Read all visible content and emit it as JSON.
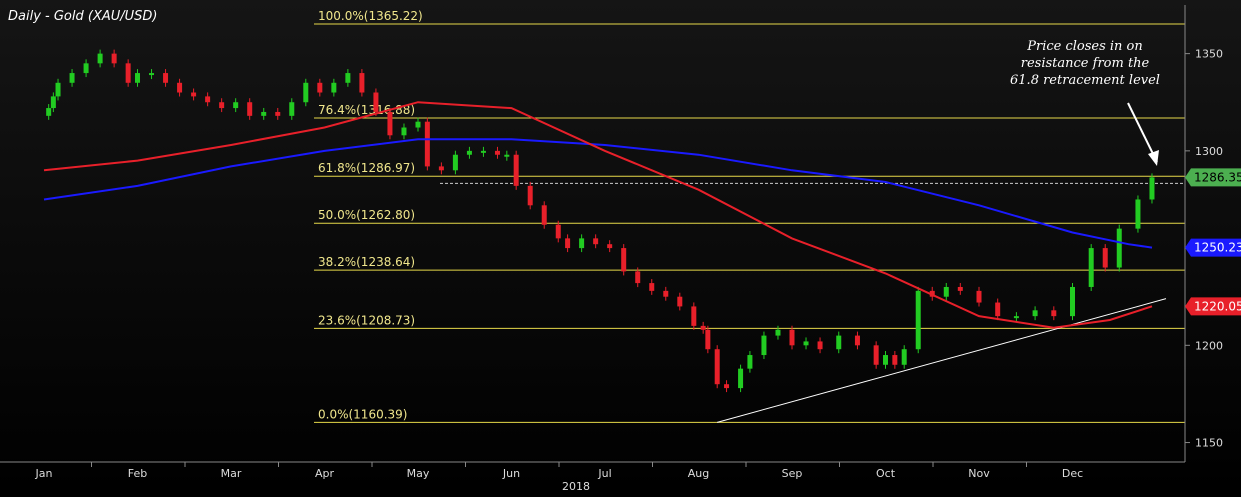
{
  "chart_data": {
    "type": "candlestick",
    "title": "Daily - Gold (XAU/USD)",
    "year_label": "2018",
    "months": [
      "Jan",
      "Feb",
      "Mar",
      "Apr",
      "May",
      "Jun",
      "Jul",
      "Aug",
      "Sep",
      "Oct",
      "Nov",
      "Dec"
    ],
    "ylim": [
      1140,
      1375
    ],
    "y_ticks": [
      1150,
      1200,
      1250,
      1300,
      1350
    ],
    "fib_levels": [
      {
        "label": "100.0%(1365.22)",
        "value": 1365.22
      },
      {
        "label": "76.4%(1316.88)",
        "value": 1316.88
      },
      {
        "label": "61.8%(1286.97)",
        "value": 1286.97
      },
      {
        "label": "50.0%(1262.80)",
        "value": 1262.8
      },
      {
        "label": "38.2%(1238.64)",
        "value": 1238.64
      },
      {
        "label": "23.6%(1208.73)",
        "value": 1208.73
      },
      {
        "label": "0.0%(1160.39)",
        "value": 1160.39
      }
    ],
    "price_tags": [
      {
        "label": "1286.35",
        "value": 1286.35,
        "color": "#4caf50"
      },
      {
        "label": "1250.23",
        "value": 1250.23,
        "color": "#1a1aff"
      },
      {
        "label": "1220.05",
        "value": 1220.05,
        "color": "#e8202a"
      }
    ],
    "series": [
      {
        "name": "close",
        "color": "#22cc22",
        "down_color": "#e8202a",
        "points": [
          [
            0,
            1318
          ],
          [
            0.05,
            1322
          ],
          [
            0.1,
            1328
          ],
          [
            0.15,
            1335
          ],
          [
            0.3,
            1340
          ],
          [
            0.45,
            1345
          ],
          [
            0.6,
            1350
          ],
          [
            0.75,
            1345
          ],
          [
            0.9,
            1335
          ],
          [
            1.0,
            1340
          ],
          [
            1.15,
            1340
          ],
          [
            1.3,
            1335
          ],
          [
            1.45,
            1330
          ],
          [
            1.6,
            1328
          ],
          [
            1.75,
            1325
          ],
          [
            1.9,
            1322
          ],
          [
            2.05,
            1325
          ],
          [
            2.2,
            1318
          ],
          [
            2.35,
            1320
          ],
          [
            2.5,
            1318
          ],
          [
            2.65,
            1325
          ],
          [
            2.8,
            1335
          ],
          [
            2.95,
            1330
          ],
          [
            3.1,
            1335
          ],
          [
            3.25,
            1340
          ],
          [
            3.4,
            1330
          ],
          [
            3.55,
            1320
          ],
          [
            3.7,
            1308
          ],
          [
            3.85,
            1312
          ],
          [
            4.0,
            1315
          ],
          [
            4.1,
            1292
          ],
          [
            4.25,
            1290
          ],
          [
            4.4,
            1298
          ],
          [
            4.55,
            1300
          ],
          [
            4.7,
            1300
          ],
          [
            4.85,
            1298
          ],
          [
            4.95,
            1298
          ],
          [
            5.05,
            1282
          ],
          [
            5.2,
            1272
          ],
          [
            5.35,
            1262
          ],
          [
            5.5,
            1255
          ],
          [
            5.6,
            1250
          ],
          [
            5.75,
            1255
          ],
          [
            5.9,
            1252
          ],
          [
            6.05,
            1250
          ],
          [
            6.2,
            1238
          ],
          [
            6.35,
            1232
          ],
          [
            6.5,
            1228
          ],
          [
            6.65,
            1225
          ],
          [
            6.8,
            1220
          ],
          [
            6.95,
            1210
          ],
          [
            7.05,
            1208
          ],
          [
            7.1,
            1198
          ],
          [
            7.2,
            1180
          ],
          [
            7.3,
            1178
          ],
          [
            7.45,
            1188
          ],
          [
            7.55,
            1195
          ],
          [
            7.7,
            1205
          ],
          [
            7.85,
            1208
          ],
          [
            8.0,
            1200
          ],
          [
            8.15,
            1202
          ],
          [
            8.3,
            1198
          ],
          [
            8.5,
            1205
          ],
          [
            8.7,
            1200
          ],
          [
            8.9,
            1190
          ],
          [
            9.0,
            1195
          ],
          [
            9.1,
            1190
          ],
          [
            9.2,
            1198
          ],
          [
            9.35,
            1228
          ],
          [
            9.5,
            1225
          ],
          [
            9.65,
            1230
          ],
          [
            9.8,
            1228
          ],
          [
            10.0,
            1222
          ],
          [
            10.2,
            1215
          ],
          [
            10.4,
            1215
          ],
          [
            10.6,
            1218
          ],
          [
            10.8,
            1215
          ],
          [
            11.0,
            1230
          ],
          [
            11.2,
            1250
          ],
          [
            11.35,
            1240
          ],
          [
            11.5,
            1260
          ],
          [
            11.7,
            1275
          ],
          [
            11.85,
            1286.35
          ]
        ]
      },
      {
        "name": "MA100",
        "color": "#1a1aff",
        "points": [
          [
            0,
            1275
          ],
          [
            1,
            1282
          ],
          [
            2,
            1292
          ],
          [
            3,
            1300
          ],
          [
            4,
            1306
          ],
          [
            5,
            1306
          ],
          [
            6,
            1303
          ],
          [
            7,
            1298
          ],
          [
            8,
            1290
          ],
          [
            9,
            1284
          ],
          [
            10,
            1272
          ],
          [
            11,
            1258
          ],
          [
            11.6,
            1252
          ],
          [
            11.85,
            1250.23
          ]
        ]
      },
      {
        "name": "MA200",
        "color": "#e8202a",
        "points": [
          [
            0,
            1290
          ],
          [
            1,
            1295
          ],
          [
            2,
            1303
          ],
          [
            3,
            1312
          ],
          [
            4,
            1325
          ],
          [
            5,
            1322
          ],
          [
            6,
            1300
          ],
          [
            7,
            1280
          ],
          [
            8,
            1255
          ],
          [
            9,
            1237
          ],
          [
            10,
            1215
          ],
          [
            10.8,
            1209
          ],
          [
            11.4,
            1213
          ],
          [
            11.85,
            1220.05
          ]
        ]
      }
    ],
    "trendline": {
      "points": [
        [
          7.2,
          1160.39
        ],
        [
          12.0,
          1224
        ]
      ]
    },
    "annotation": {
      "lines": [
        "Price closes in on",
        "resistance from the",
        "61.8 retracement level"
      ]
    }
  }
}
